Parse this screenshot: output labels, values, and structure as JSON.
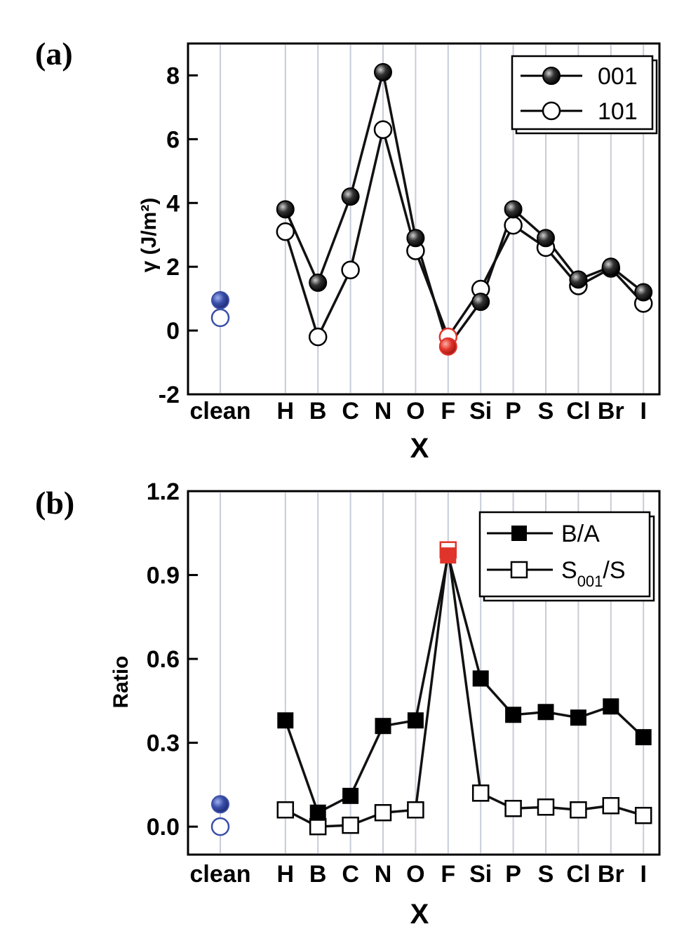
{
  "chart_data": [
    {
      "type": "line",
      "panel_label": "(a)",
      "xlabel": "X",
      "ylabel": "γ (J/m²)",
      "categories": [
        "clean",
        "",
        "H",
        "B",
        "C",
        "N",
        "O",
        "F",
        "Si",
        "P",
        "S",
        "Cl",
        "Br",
        "I"
      ],
      "ylim": [
        -2,
        9
      ],
      "yticks": [
        -2,
        0,
        2,
        4,
        6,
        8
      ],
      "grid": "vertical",
      "legend": "top-right",
      "series": [
        {
          "name": "001",
          "marker": "half-filled-circle",
          "color": "#111111",
          "connected_from": 2,
          "values": [
            0.95,
            null,
            3.8,
            1.5,
            4.2,
            8.1,
            2.9,
            -0.5,
            0.9,
            3.8,
            2.9,
            1.6,
            2.0,
            1.2
          ]
        },
        {
          "name": "101",
          "marker": "open-circle",
          "color": "#111111",
          "connected_from": 2,
          "values": [
            0.4,
            null,
            3.1,
            -0.2,
            1.9,
            6.3,
            2.5,
            -0.2,
            1.3,
            3.3,
            2.6,
            1.4,
            1.95,
            0.85
          ]
        }
      ],
      "highlight_colors": {
        "clean": "#3a4fa8",
        "F": "#e0342a"
      }
    },
    {
      "type": "line",
      "panel_label": "(b)",
      "xlabel": "X",
      "ylabel": "Ratio",
      "categories": [
        "clean",
        "",
        "H",
        "B",
        "C",
        "N",
        "O",
        "F",
        "Si",
        "P",
        "S",
        "Cl",
        "Br",
        "I"
      ],
      "ylim": [
        -0.1,
        1.2
      ],
      "yticks": [
        "0.0",
        "0.3",
        "0.6",
        "0.9",
        "1.2"
      ],
      "grid": "vertical",
      "legend": "top-right",
      "series": [
        {
          "name": "B/A",
          "marker": "filled-square",
          "color": "#111111",
          "connected_from": 2,
          "values": [
            0.08,
            null,
            0.38,
            0.05,
            0.11,
            0.36,
            0.38,
            0.97,
            0.53,
            0.4,
            0.41,
            0.39,
            0.43,
            0.32
          ]
        },
        {
          "name": "S001/S",
          "legend_main": "S",
          "legend_sub": "001",
          "legend_tail": "/S",
          "marker": "open-square",
          "color": "#111111",
          "connected_from": 2,
          "values": [
            0.0,
            null,
            0.06,
            0.0,
            0.005,
            0.05,
            0.06,
            0.99,
            0.12,
            0.065,
            0.07,
            0.06,
            0.075,
            0.04
          ]
        }
      ],
      "highlight_colors": {
        "clean": "#3a4fa8",
        "F": "#e0342a"
      }
    }
  ]
}
